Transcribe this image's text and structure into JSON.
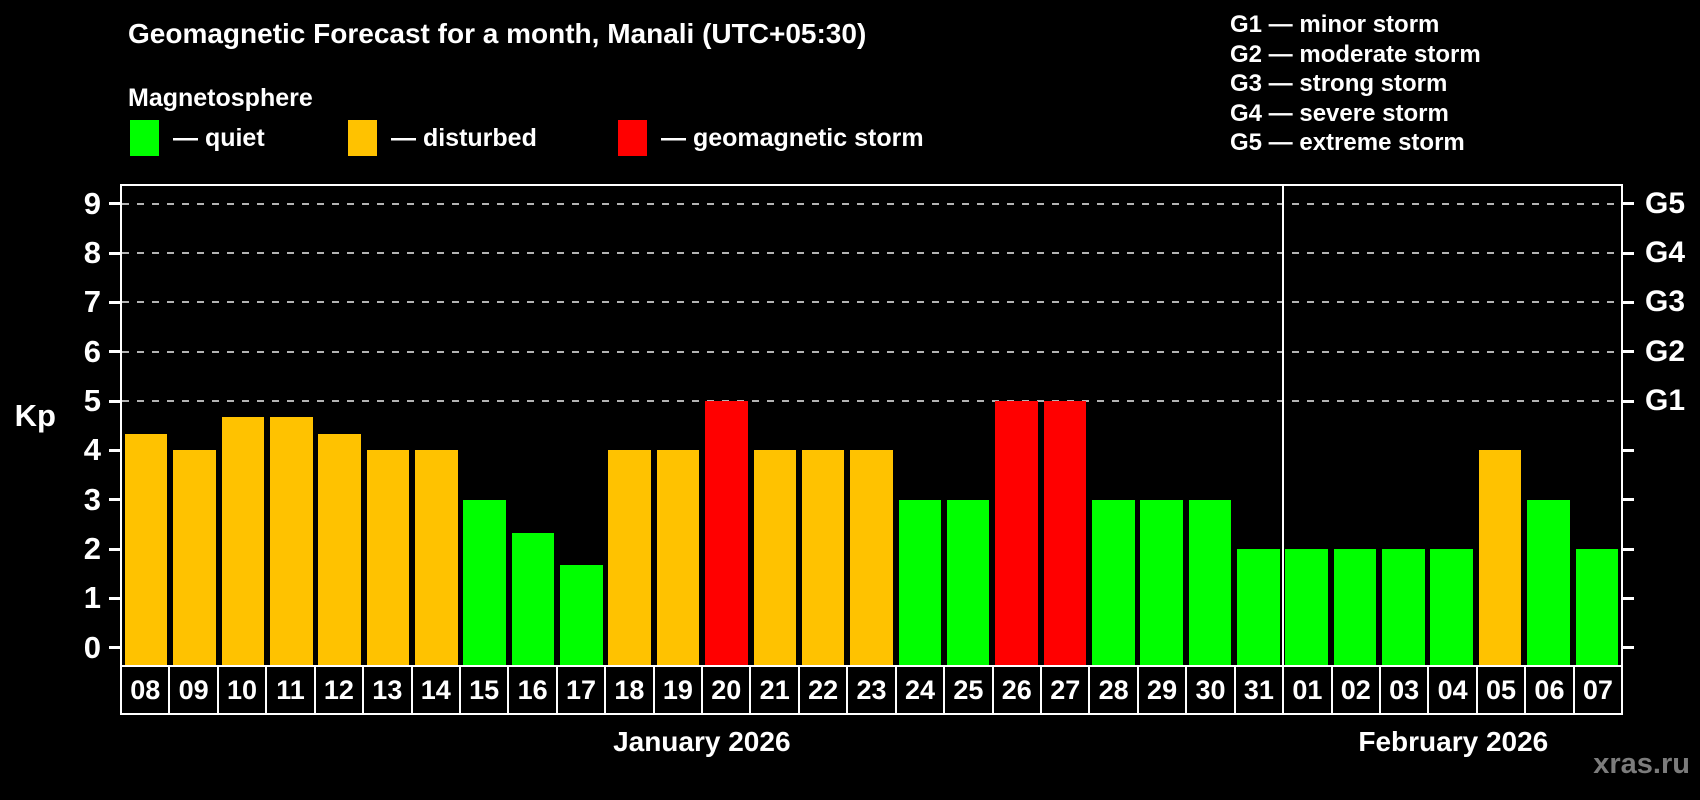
{
  "header": {
    "title": "Geomagnetic Forecast for a month, Manali (UTC+05:30)"
  },
  "watermark": "xras.ru",
  "colors": {
    "quiet": "#00ff00",
    "disturbed": "#ffc200",
    "storm": "#ff0000",
    "background": "#000000",
    "grid": "#b3b3b3",
    "frame": "#ffffff",
    "watermark_color": "#7c7c7c"
  },
  "legend": {
    "title": "Magnetosphere",
    "items": [
      {
        "status": "quiet",
        "label": "— quiet"
      },
      {
        "status": "disturbed",
        "label": "— disturbed"
      },
      {
        "status": "storm",
        "label": "— geomagnetic storm"
      }
    ]
  },
  "g_scale_legend": [
    "G1 — minor storm",
    "G2 — moderate storm",
    "G3 — strong storm",
    "G4 — severe storm",
    "G5 — extreme storm"
  ],
  "chart_data": {
    "type": "bar",
    "title": "Geomagnetic Forecast for a month, Manali (UTC+05:30)",
    "ylabel": "Kp",
    "y_ticks": [
      0,
      1,
      2,
      3,
      4,
      5,
      6,
      7,
      8,
      9
    ],
    "ylim": [
      -0.35,
      9.36
    ],
    "grid": "dashed-horizontal-at-storm-levels",
    "grid_values": [
      5,
      6,
      7,
      8,
      9
    ],
    "right_axis": [
      {
        "value": 5,
        "label": "G1"
      },
      {
        "value": 6,
        "label": "G2"
      },
      {
        "value": 7,
        "label": "G3"
      },
      {
        "value": 8,
        "label": "G4"
      },
      {
        "value": 9,
        "label": "G5"
      }
    ],
    "months": [
      {
        "label": "January 2026",
        "days": 24
      },
      {
        "label": "February 2026",
        "days": 7
      }
    ],
    "bars": [
      {
        "day": "08",
        "kp": 4.33,
        "status": "disturbed"
      },
      {
        "day": "09",
        "kp": 4.0,
        "status": "disturbed"
      },
      {
        "day": "10",
        "kp": 4.67,
        "status": "disturbed"
      },
      {
        "day": "11",
        "kp": 4.67,
        "status": "disturbed"
      },
      {
        "day": "12",
        "kp": 4.33,
        "status": "disturbed"
      },
      {
        "day": "13",
        "kp": 4.0,
        "status": "disturbed"
      },
      {
        "day": "14",
        "kp": 4.0,
        "status": "disturbed"
      },
      {
        "day": "15",
        "kp": 3.0,
        "status": "quiet"
      },
      {
        "day": "16",
        "kp": 2.33,
        "status": "quiet"
      },
      {
        "day": "17",
        "kp": 1.67,
        "status": "quiet"
      },
      {
        "day": "18",
        "kp": 4.0,
        "status": "disturbed"
      },
      {
        "day": "19",
        "kp": 4.0,
        "status": "disturbed"
      },
      {
        "day": "20",
        "kp": 5.0,
        "status": "storm"
      },
      {
        "day": "21",
        "kp": 4.0,
        "status": "disturbed"
      },
      {
        "day": "22",
        "kp": 4.0,
        "status": "disturbed"
      },
      {
        "day": "23",
        "kp": 4.0,
        "status": "disturbed"
      },
      {
        "day": "24",
        "kp": 3.0,
        "status": "quiet"
      },
      {
        "day": "25",
        "kp": 3.0,
        "status": "quiet"
      },
      {
        "day": "26",
        "kp": 5.0,
        "status": "storm"
      },
      {
        "day": "27",
        "kp": 5.0,
        "status": "storm"
      },
      {
        "day": "28",
        "kp": 3.0,
        "status": "quiet"
      },
      {
        "day": "29",
        "kp": 3.0,
        "status": "quiet"
      },
      {
        "day": "30",
        "kp": 3.0,
        "status": "quiet"
      },
      {
        "day": "31",
        "kp": 2.0,
        "status": "quiet"
      },
      {
        "day": "01",
        "kp": 2.0,
        "status": "quiet"
      },
      {
        "day": "02",
        "kp": 2.0,
        "status": "quiet"
      },
      {
        "day": "03",
        "kp": 2.0,
        "status": "quiet"
      },
      {
        "day": "04",
        "kp": 2.0,
        "status": "quiet"
      },
      {
        "day": "05",
        "kp": 4.0,
        "status": "disturbed"
      },
      {
        "day": "06",
        "kp": 3.0,
        "status": "quiet"
      },
      {
        "day": "07",
        "kp": 2.0,
        "status": "quiet"
      }
    ]
  }
}
